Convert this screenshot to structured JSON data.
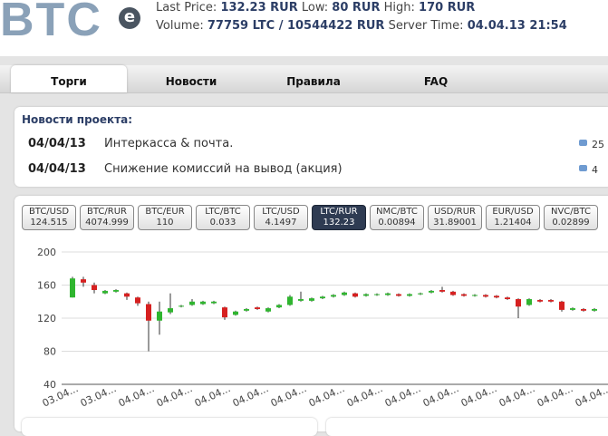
{
  "header": {
    "logo": "BTC",
    "logo_badge": "e",
    "stats": [
      [
        {
          "label": "Last Price:",
          "value": "132.23 RUR"
        },
        {
          "label": "Low:",
          "value": "80 RUR"
        },
        {
          "label": "High:",
          "value": "170 RUR"
        }
      ],
      [
        {
          "label": "Volume:",
          "value": "77759 LTC / 10544422 RUR"
        },
        {
          "label": "Server Time:",
          "value": "04.04.13 21:54"
        }
      ]
    ]
  },
  "nav": {
    "tabs": [
      "Торги",
      "Новости",
      "Правила",
      "FAQ"
    ],
    "active": 0
  },
  "news": {
    "title": "Новости проекта:",
    "items": [
      {
        "date": "04/04/13",
        "text": "Интеркасса & почта.",
        "comments": 25
      },
      {
        "date": "04/04/13",
        "text": "Снижение комиссий на вывод (акция)",
        "comments": 4
      }
    ]
  },
  "pairs": {
    "active": 5,
    "items": [
      {
        "name": "BTC/USD",
        "price": "124.515"
      },
      {
        "name": "BTC/RUR",
        "price": "4074.999"
      },
      {
        "name": "BTC/EUR",
        "price": "110"
      },
      {
        "name": "LTC/BTC",
        "price": "0.033"
      },
      {
        "name": "LTC/USD",
        "price": "4.1497"
      },
      {
        "name": "LTC/RUR",
        "price": "132.23"
      },
      {
        "name": "NMC/BTC",
        "price": "0.00894"
      },
      {
        "name": "USD/RUR",
        "price": "31.89001"
      },
      {
        "name": "EUR/USD",
        "price": "1.21404"
      },
      {
        "name": "NVC/BTC",
        "price": "0.02899"
      }
    ]
  },
  "chart_data": {
    "type": "candlestick",
    "ylim": [
      40,
      200
    ],
    "yticks": [
      40,
      80,
      120,
      160,
      200
    ],
    "grid": true,
    "up_color": "#2fb52f",
    "down_color": "#d62020",
    "x_labels": [
      "03.04...",
      "03.04...",
      "04.04...",
      "04.04...",
      "04.04...",
      "04.04...",
      "04.04...",
      "04.04...",
      "04.04...",
      "04.04...",
      "04.04...",
      "04.04...",
      "04.04...",
      "04.04...",
      "04.04..."
    ],
    "candles": [
      {
        "open": 145,
        "high": 170,
        "low": 145,
        "close": 168
      },
      {
        "open": 167,
        "high": 170,
        "low": 158,
        "close": 163
      },
      {
        "open": 160,
        "high": 163,
        "low": 150,
        "close": 154
      },
      {
        "open": 150,
        "high": 154,
        "low": 149,
        "close": 153
      },
      {
        "open": 152,
        "high": 155,
        "low": 151,
        "close": 154
      },
      {
        "open": 150,
        "high": 151,
        "low": 142,
        "close": 146
      },
      {
        "open": 145,
        "high": 146,
        "low": 135,
        "close": 138
      },
      {
        "open": 137,
        "high": 140,
        "low": 80,
        "close": 117
      },
      {
        "open": 117,
        "high": 140,
        "low": 100,
        "close": 128
      },
      {
        "open": 127,
        "high": 150,
        "low": 125,
        "close": 132
      },
      {
        "open": 134,
        "high": 136,
        "low": 133,
        "close": 135
      },
      {
        "open": 136,
        "high": 143,
        "low": 135,
        "close": 140
      },
      {
        "open": 137,
        "high": 141,
        "low": 136,
        "close": 140
      },
      {
        "open": 138,
        "high": 141,
        "low": 137,
        "close": 140
      },
      {
        "open": 133,
        "high": 134,
        "low": 118,
        "close": 121
      },
      {
        "open": 124,
        "high": 129,
        "low": 123,
        "close": 128
      },
      {
        "open": 129,
        "high": 132,
        "low": 128,
        "close": 131
      },
      {
        "open": 133,
        "high": 134,
        "low": 130,
        "close": 131
      },
      {
        "open": 128,
        "high": 133,
        "low": 127,
        "close": 132
      },
      {
        "open": 133,
        "high": 137,
        "low": 132,
        "close": 136
      },
      {
        "open": 136,
        "high": 148,
        "low": 135,
        "close": 146
      },
      {
        "open": 141,
        "high": 152,
        "low": 140,
        "close": 143
      },
      {
        "open": 141,
        "high": 145,
        "low": 140,
        "close": 144
      },
      {
        "open": 144,
        "high": 147,
        "low": 143,
        "close": 146
      },
      {
        "open": 146,
        "high": 149,
        "low": 145,
        "close": 148
      },
      {
        "open": 148,
        "high": 152,
        "low": 147,
        "close": 151
      },
      {
        "open": 150,
        "high": 151,
        "low": 145,
        "close": 146
      },
      {
        "open": 147,
        "high": 150,
        "low": 146,
        "close": 149
      },
      {
        "open": 148,
        "high": 150,
        "low": 147,
        "close": 149
      },
      {
        "open": 148,
        "high": 151,
        "low": 147,
        "close": 150
      },
      {
        "open": 149,
        "high": 150,
        "low": 146,
        "close": 147
      },
      {
        "open": 147,
        "high": 150,
        "low": 146,
        "close": 149
      },
      {
        "open": 149,
        "high": 151,
        "low": 148,
        "close": 150
      },
      {
        "open": 151,
        "high": 154,
        "low": 150,
        "close": 153
      },
      {
        "open": 154,
        "high": 158,
        "low": 151,
        "close": 152
      },
      {
        "open": 152,
        "high": 153,
        "low": 147,
        "close": 148
      },
      {
        "open": 149,
        "high": 150,
        "low": 146,
        "close": 147
      },
      {
        "open": 147,
        "high": 149,
        "low": 146,
        "close": 148
      },
      {
        "open": 148,
        "high": 149,
        "low": 145,
        "close": 146
      },
      {
        "open": 147,
        "high": 148,
        "low": 144,
        "close": 145
      },
      {
        "open": 145,
        "high": 146,
        "low": 142,
        "close": 143
      },
      {
        "open": 143,
        "high": 144,
        "low": 120,
        "close": 134
      },
      {
        "open": 136,
        "high": 144,
        "low": 135,
        "close": 143
      },
      {
        "open": 142,
        "high": 143,
        "low": 139,
        "close": 140
      },
      {
        "open": 142,
        "high": 143,
        "low": 139,
        "close": 140
      },
      {
        "open": 140,
        "high": 141,
        "low": 128,
        "close": 130
      },
      {
        "open": 130,
        "high": 133,
        "low": 129,
        "close": 132
      },
      {
        "open": 131,
        "high": 132,
        "low": 128,
        "close": 129
      },
      {
        "open": 129,
        "high": 132,
        "low": 128,
        "close": 131
      }
    ]
  }
}
